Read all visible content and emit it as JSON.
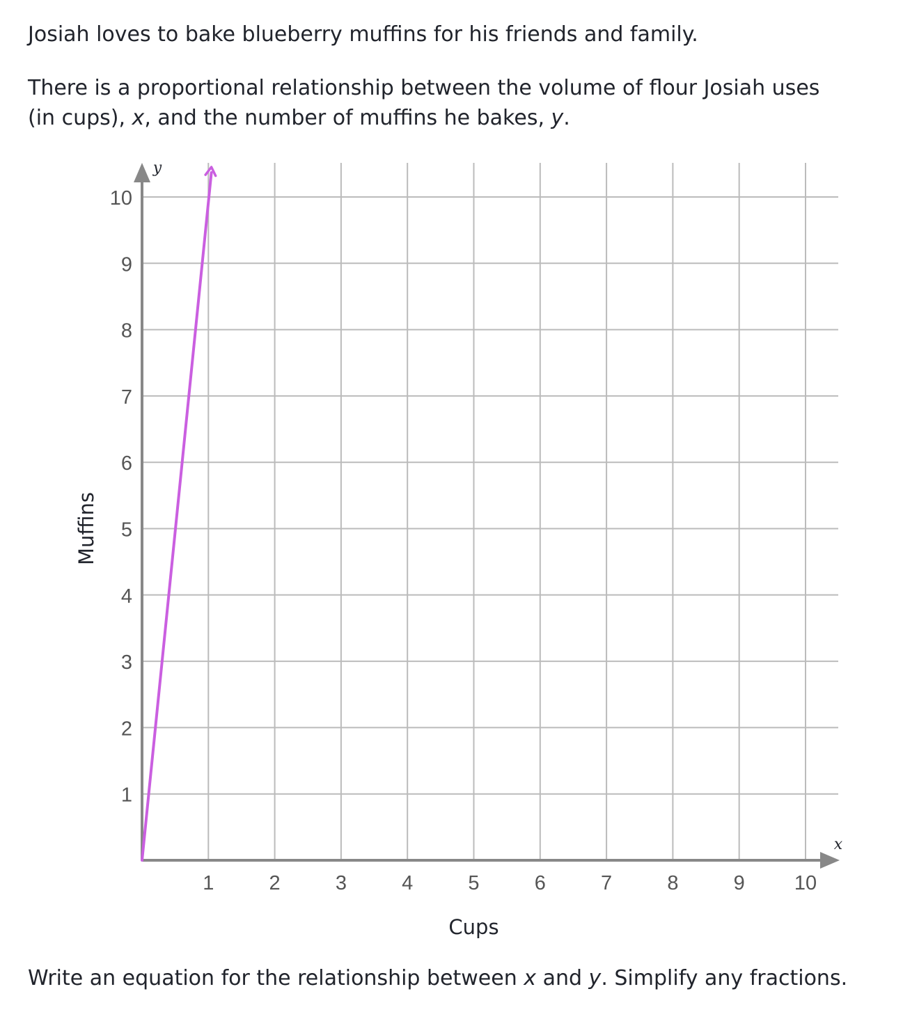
{
  "text": {
    "intro": "Josiah loves to bake blueberry muffins for his friends and family.",
    "relationship_1": "There is a proportional relationship between the volume of flour Josiah uses",
    "relationship_2a": "(in cups), ",
    "relationship_x": "x",
    "relationship_2b": ", and the number of muffins he bakes, ",
    "relationship_y": "y",
    "relationship_2c": ".",
    "question_a": "Write an equation for the relationship between ",
    "question_x": "x",
    "question_b": " and ",
    "question_y": "y",
    "question_c": ". Simplify any fractions."
  },
  "chart_data": {
    "type": "line",
    "xlabel": "Cups",
    "ylabel": "Muffins",
    "x_var": "x",
    "y_var": "y",
    "xlim": [
      0,
      10
    ],
    "ylim": [
      0,
      10
    ],
    "xticks": [
      "1",
      "2",
      "3",
      "4",
      "5",
      "6",
      "7",
      "8",
      "9",
      "10"
    ],
    "yticks": [
      "1",
      "2",
      "3",
      "4",
      "5",
      "6",
      "7",
      "8",
      "9",
      "10"
    ],
    "grid": true,
    "series": [
      {
        "color": "#ca5fe0",
        "points": [
          [
            0,
            0
          ],
          [
            1,
            10
          ]
        ],
        "arrow_end": true
      }
    ],
    "axis_color": "#888888",
    "grid_color": "#bbbbbb"
  }
}
